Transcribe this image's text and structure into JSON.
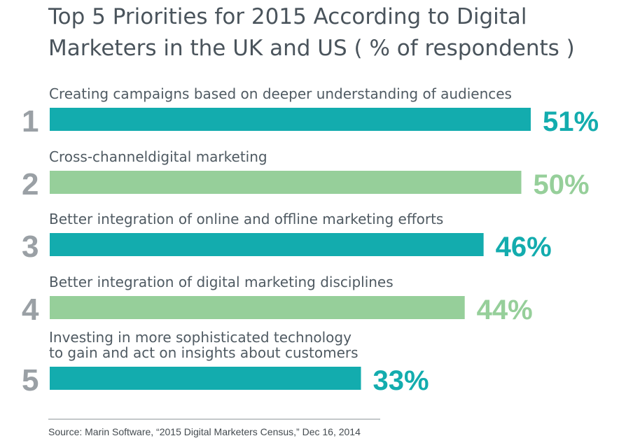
{
  "chart_data": {
    "type": "bar",
    "orientation": "horizontal",
    "title": "Top 5 Priorities for 2015 According to Digital Marketers in the UK and US ( % of respondents )",
    "title_lines": [
      "Top 5 Priorities for 2015 According to Digital",
      "Marketers in the UK and US ( % of respondents )"
    ],
    "categories": [
      "Creating campaigns based on deeper understanding of audiences",
      "Cross-channeldigital marketing",
      "Better integration of online and offline marketing efforts",
      "Better integration of digital marketing disciplines",
      "Investing in more sophisticated technology to gain and act on insights about customers"
    ],
    "items": [
      {
        "rank": "1",
        "label_lines": [
          "Creating campaigns based on deeper understanding of audiences"
        ],
        "value": 51,
        "value_label": "51%",
        "color": "#13acae"
      },
      {
        "rank": "2",
        "label_lines": [
          "Cross-channeldigital marketing"
        ],
        "value": 50,
        "value_label": "50%",
        "color": "#96cf9a"
      },
      {
        "rank": "3",
        "label_lines": [
          "Better integration of online and offline marketing efforts"
        ],
        "value": 46,
        "value_label": "46%",
        "color": "#13acae"
      },
      {
        "rank": "4",
        "label_lines": [
          "Better integration of digital marketing disciplines"
        ],
        "value": 44,
        "value_label": "44%",
        "color": "#96cf9a"
      },
      {
        "rank": "5",
        "label_lines": [
          "Investing in more sophisticated technology",
          "to gain and act on insights about customers"
        ],
        "value": 33,
        "value_label": "33%",
        "color": "#13acae"
      }
    ],
    "unit": "%",
    "source": "Source: Marin Software, “2015 Digital Marketers Census,” Dec 16, 2014",
    "legend": "none",
    "grid": false
  }
}
